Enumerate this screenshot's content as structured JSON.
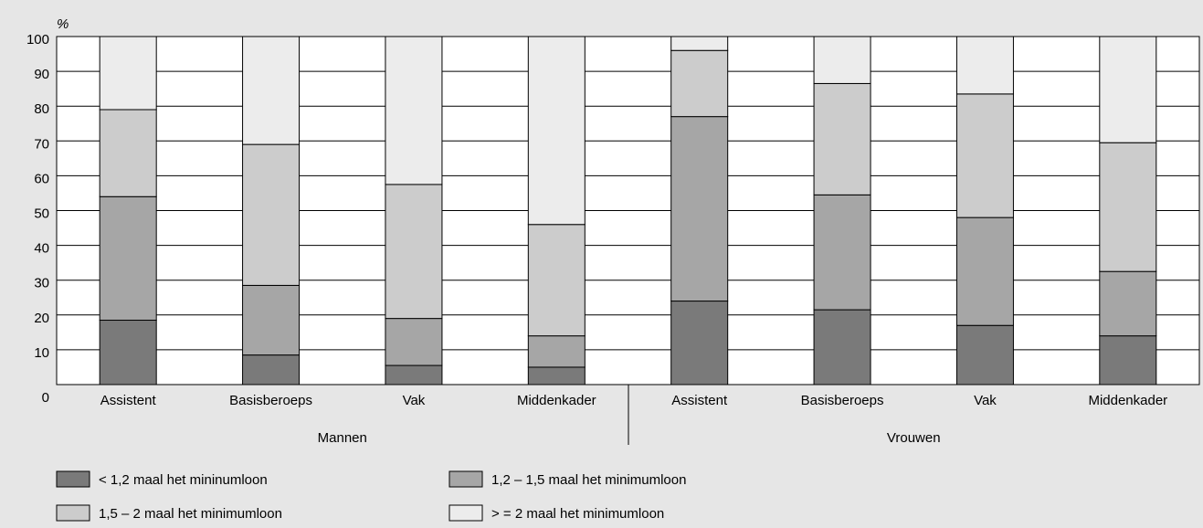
{
  "chart_data": {
    "type": "stacked_bar",
    "y_label": "%",
    "categories": [
      "Assistent",
      "Basisberoeps",
      "Vak",
      "Middenkader",
      "Assistent",
      "Basisberoeps",
      "Vak",
      "Middenkader"
    ],
    "group_labels": [
      "Mannen",
      "Vrouwen"
    ],
    "series": [
      {
        "name": "< 1,2 maal het mininumloon",
        "color": "#7a7a7a",
        "values": [
          18.5,
          8.5,
          5.5,
          5,
          24,
          21.5,
          17,
          14
        ]
      },
      {
        "name": "1,2 – 1,5 maal het minimumloon",
        "color": "#a6a6a6",
        "values": [
          35.5,
          20,
          13.5,
          9,
          53,
          33,
          31,
          18.5
        ]
      },
      {
        "name": "1,5 – 2 maal het minimumloon",
        "color": "#cccccc",
        "values": [
          25,
          40.5,
          38.5,
          32,
          19,
          32,
          35.5,
          37
        ]
      },
      {
        "name": "> = 2 maal het minimumloon",
        "color": "#ececec",
        "values": [
          21,
          31,
          42.5,
          54,
          4,
          13.5,
          16.5,
          30.5
        ]
      }
    ],
    "ylim": [
      0,
      100
    ],
    "yticks": [
      0,
      10,
      20,
      30,
      40,
      50,
      60,
      70,
      80,
      90,
      100
    ],
    "grid": true
  }
}
